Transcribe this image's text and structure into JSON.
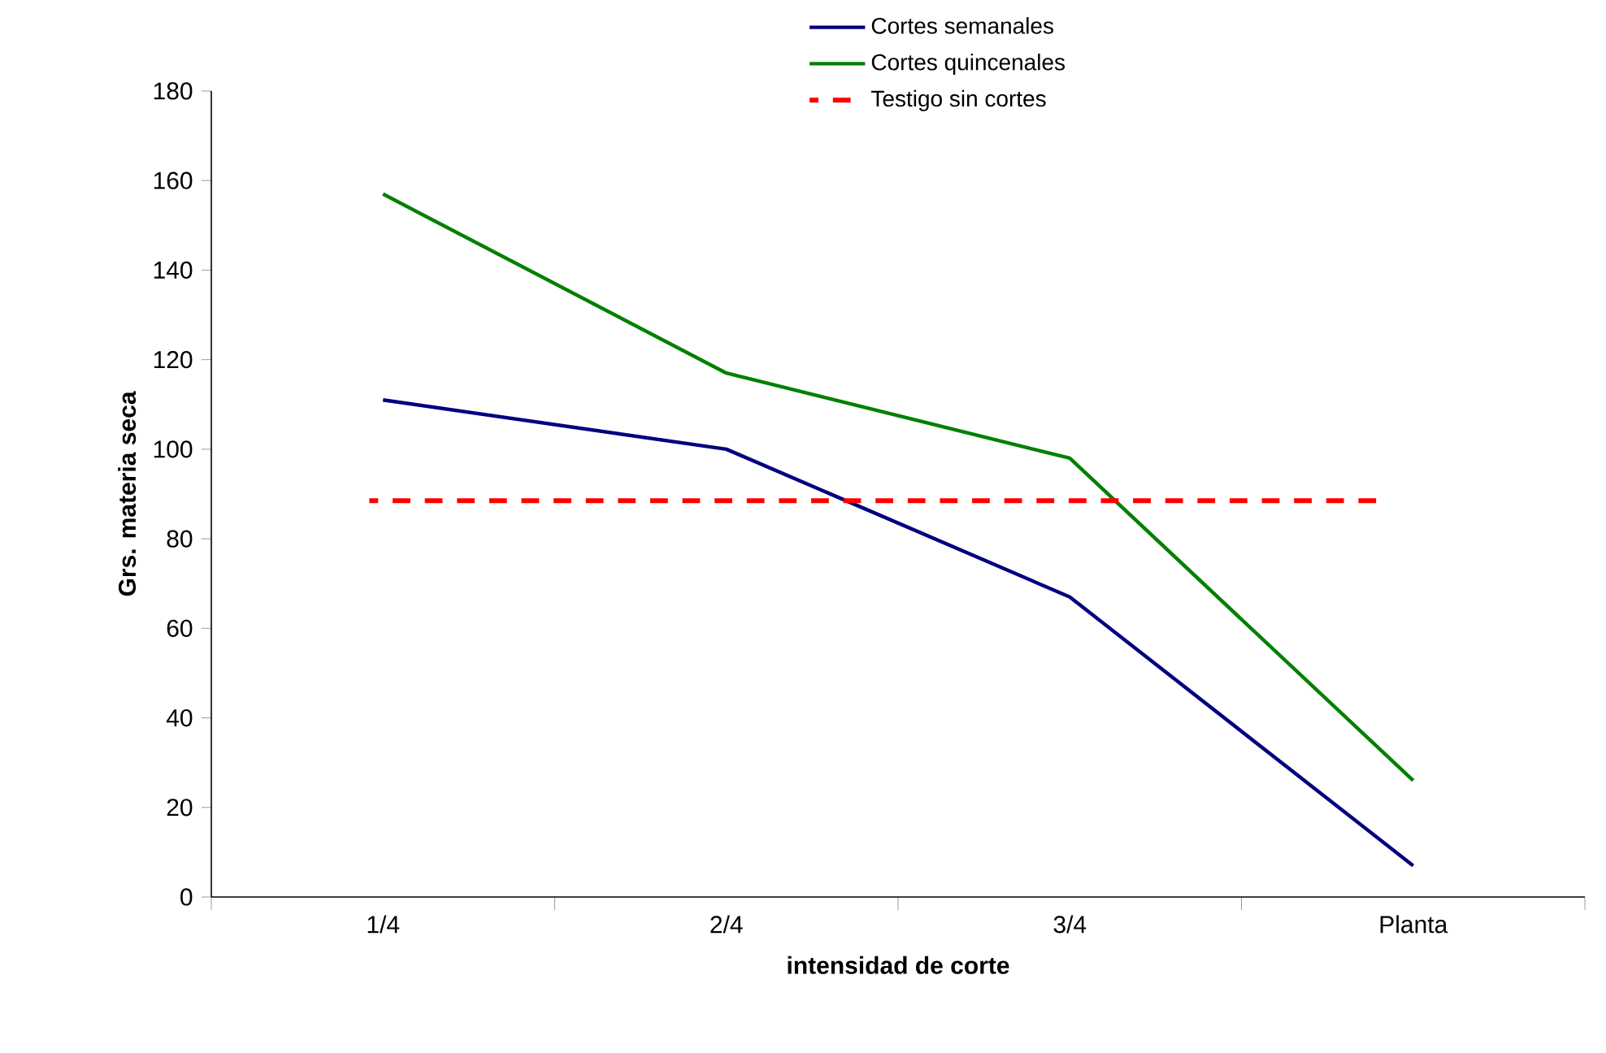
{
  "chart_data": {
    "type": "line",
    "xlabel": "intensidad de corte",
    "ylabel": "Grs. materia seca",
    "categories": [
      "1/4",
      "2/4",
      "3/4",
      "Planta"
    ],
    "series": [
      {
        "name": "Cortes semanales",
        "color": "#000080",
        "values": [
          111,
          100,
          67,
          7
        ]
      },
      {
        "name": "Cortes quincenales",
        "color": "#008000",
        "values": [
          157,
          117,
          98,
          26
        ]
      }
    ],
    "ref_lines": [
      {
        "axis": "y",
        "value": 88.5,
        "label": "Testigo sin cortes",
        "color": "#ff0000",
        "line_style": "dashed"
      }
    ],
    "ylim": [
      0,
      180
    ],
    "yticks": [
      0,
      20,
      40,
      60,
      80,
      100,
      120,
      140,
      160,
      180
    ],
    "grid": false,
    "legend": "top right",
    "marker": "none"
  }
}
